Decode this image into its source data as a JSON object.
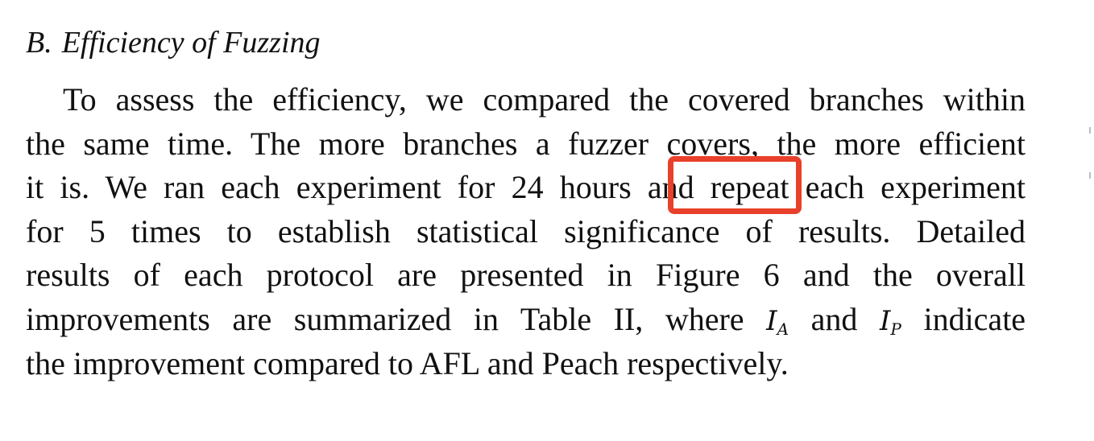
{
  "section": {
    "number": "B.",
    "title": "Efficiency of Fuzzing"
  },
  "paragraph": {
    "line1": "To assess the efficiency, we compared the covered branches within",
    "line2": "the same time. The more branches a fuzzer covers, the more efficient",
    "line3": "it is. We ran each experiment for 24 hours and repeat each experiment",
    "line4": "for 5 times to establish statistical significance of results. Detailed",
    "line5": "results of each protocol are presented in Figure 6 and the overall",
    "line6_a": "improvements are summarized in Table II, where",
    "math_ia_base": "I",
    "math_ia_sub": "A",
    "line6_b": "and",
    "math_ip_base": "I",
    "math_ip_sub": "P",
    "line6_c": "indicate",
    "line7": "the improvement compared to AFL and Peach respectively."
  },
  "highlight": {
    "target_word": "repeat",
    "color": "#e8402a"
  }
}
